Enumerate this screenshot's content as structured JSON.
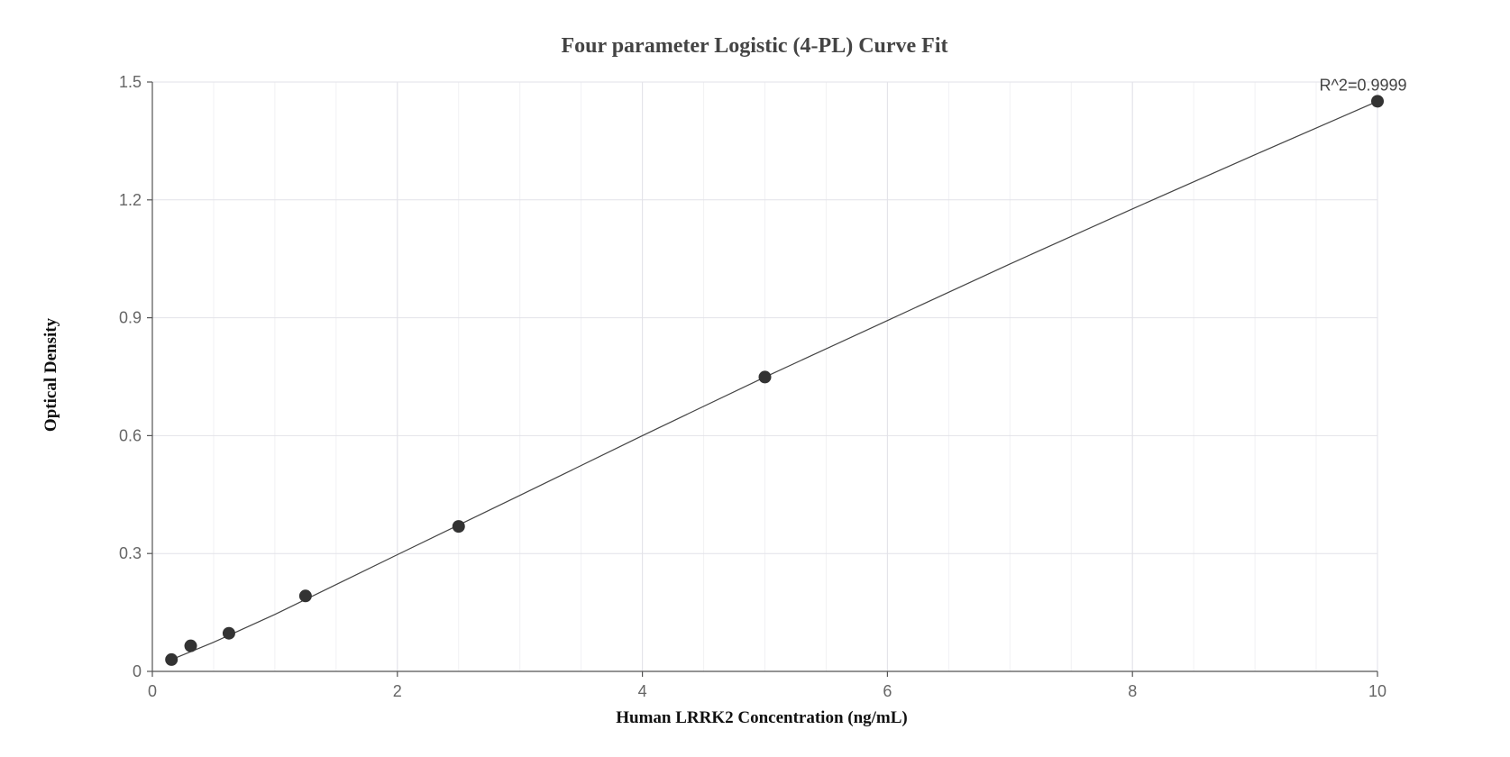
{
  "chart_data": {
    "type": "scatter",
    "title": "Four parameter Logistic (4-PL) Curve Fit",
    "xlabel": "Human LRRK2 Concentration (ng/mL)",
    "ylabel": "Optical Density",
    "xlim": [
      0,
      10
    ],
    "ylim": [
      0,
      1.5
    ],
    "x_ticks": [
      0,
      2,
      4,
      6,
      8,
      10
    ],
    "x_tick_labels": [
      "0",
      "2",
      "4",
      "6",
      "8",
      "10"
    ],
    "y_ticks": [
      0,
      0.3,
      0.6,
      0.9,
      1.2,
      1.5
    ],
    "y_tick_labels": [
      "0",
      "0.3",
      "0.6",
      "0.9",
      "1.2",
      "1.5"
    ],
    "grid": true,
    "annotation": "R^2=0.9999",
    "series": [
      {
        "x": [
          0.156,
          0.313,
          0.625,
          1.25,
          2.5,
          5,
          10
        ],
        "y": [
          0.03,
          0.065,
          0.097,
          0.192,
          0.369,
          0.749,
          1.451
        ],
        "color": "#333333"
      }
    ],
    "fit_line": {
      "x": [
        0.156,
        0.5,
        1,
        2,
        3,
        4,
        5,
        6,
        7,
        8,
        9,
        10
      ],
      "y": [
        0.03,
        0.074,
        0.145,
        0.297,
        0.448,
        0.6,
        0.749,
        0.893,
        1.037,
        1.177,
        1.315,
        1.451
      ],
      "color": "#444444"
    }
  }
}
